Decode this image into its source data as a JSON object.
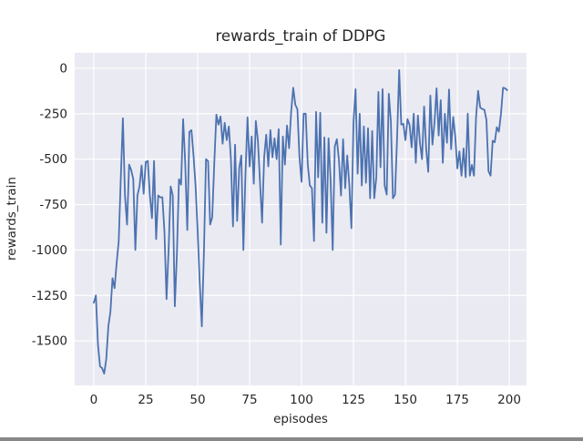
{
  "chart_data": {
    "type": "line",
    "title": "rewards_train of DDPG",
    "xlabel": "episodes",
    "ylabel": "rewards_train",
    "style": "seaborn-darkgrid",
    "grid": true,
    "legend": "none",
    "series_name": "rewards_train",
    "x": {
      "start": 0,
      "step": 1,
      "count": 200
    },
    "xticks": [
      0,
      25,
      50,
      75,
      100,
      125,
      150,
      175,
      200
    ],
    "yticks": [
      0,
      -250,
      -500,
      -750,
      -1000,
      -1250,
      -1500
    ],
    "xlim": [
      -9.2,
      208.3
    ],
    "ylim": [
      -1745,
      85
    ],
    "values": [
      -1290,
      -1250,
      -1520,
      -1640,
      -1650,
      -1680,
      -1600,
      -1420,
      -1340,
      -1155,
      -1210,
      -1070,
      -950,
      -600,
      -275,
      -700,
      -860,
      -530,
      -560,
      -610,
      -1000,
      -700,
      -650,
      -535,
      -690,
      -515,
      -510,
      -700,
      -825,
      -510,
      -940,
      -700,
      -710,
      -710,
      -900,
      -1270,
      -1000,
      -650,
      -700,
      -1310,
      -1020,
      -610,
      -640,
      -280,
      -520,
      -890,
      -350,
      -340,
      -480,
      -650,
      -900,
      -1180,
      -1420,
      -1020,
      -500,
      -510,
      -860,
      -820,
      -520,
      -255,
      -310,
      -265,
      -415,
      -300,
      -395,
      -320,
      -500,
      -870,
      -420,
      -840,
      -550,
      -480,
      -1000,
      -585,
      -270,
      -540,
      -375,
      -635,
      -290,
      -400,
      -625,
      -850,
      -490,
      -365,
      -540,
      -340,
      -490,
      -385,
      -500,
      -335,
      -970,
      -375,
      -530,
      -315,
      -440,
      -240,
      -107,
      -200,
      -225,
      -490,
      -625,
      -250,
      -250,
      -530,
      -645,
      -660,
      -950,
      -240,
      -600,
      -245,
      -850,
      -380,
      -905,
      -385,
      -620,
      -1000,
      -430,
      -390,
      -505,
      -700,
      -390,
      -660,
      -480,
      -645,
      -880,
      -300,
      -115,
      -580,
      -250,
      -645,
      -320,
      -630,
      -330,
      -715,
      -345,
      -715,
      -600,
      -130,
      -545,
      -115,
      -645,
      -695,
      -140,
      -295,
      -715,
      -695,
      -380,
      -10,
      -310,
      -305,
      -395,
      -280,
      -310,
      -435,
      -250,
      -520,
      -260,
      -410,
      -500,
      -210,
      -445,
      -570,
      -150,
      -420,
      -300,
      -110,
      -370,
      -175,
      -520,
      -250,
      -410,
      -117,
      -445,
      -268,
      -376,
      -551,
      -457,
      -591,
      -441,
      -599,
      -249,
      -591,
      -532,
      -591,
      -270,
      -124,
      -216,
      -224,
      -228,
      -283,
      -566,
      -591,
      -399,
      -407,
      -324,
      -349,
      -250,
      -107,
      -110,
      -120
    ],
    "colors": {
      "line": "#4c72b0",
      "axes_background": "#eaeaf2",
      "grid": "#ffffff",
      "text": "#262626",
      "figure_background": "#ffffff"
    }
  }
}
